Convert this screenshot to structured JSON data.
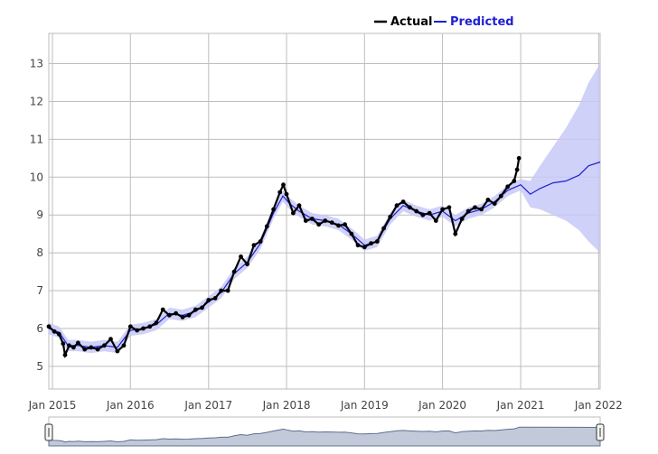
{
  "chart_data": {
    "type": "line",
    "title": "",
    "xlabel": "",
    "ylabel": "",
    "x_start": "2014-12-15",
    "x_end": "2022-01-08",
    "ylim": [
      4.4,
      13.8
    ],
    "grid": true,
    "legend_placement": "top-right",
    "x_ticks": [
      {
        "date": "2015-01-01",
        "label": "Jan 2015"
      },
      {
        "date": "2016-01-01",
        "label": "Jan 2016"
      },
      {
        "date": "2017-01-01",
        "label": "Jan 2017"
      },
      {
        "date": "2018-01-01",
        "label": "Jan 2018"
      },
      {
        "date": "2019-01-01",
        "label": "Jan 2019"
      },
      {
        "date": "2020-01-01",
        "label": "Jan 2020"
      },
      {
        "date": "2021-01-01",
        "label": "Jan 2021"
      },
      {
        "date": "2022-01-01",
        "label": "Jan 2022"
      }
    ],
    "y_ticks": [
      5,
      6,
      7,
      8,
      9,
      10,
      11,
      12,
      13
    ],
    "series": [
      {
        "name": "Actual",
        "color": "#000000",
        "mode": "markers",
        "points": [
          [
            "2014-12-15",
            6.05
          ],
          [
            "2015-01-10",
            5.92
          ],
          [
            "2015-02-01",
            5.85
          ],
          [
            "2015-02-20",
            5.6
          ],
          [
            "2015-03-01",
            5.3
          ],
          [
            "2015-03-20",
            5.55
          ],
          [
            "2015-04-10",
            5.5
          ],
          [
            "2015-05-01",
            5.62
          ],
          [
            "2015-06-01",
            5.45
          ],
          [
            "2015-07-01",
            5.5
          ],
          [
            "2015-08-01",
            5.45
          ],
          [
            "2015-09-01",
            5.55
          ],
          [
            "2015-10-01",
            5.72
          ],
          [
            "2015-11-01",
            5.4
          ],
          [
            "2015-12-01",
            5.55
          ],
          [
            "2016-01-01",
            6.05
          ],
          [
            "2016-02-01",
            5.95
          ],
          [
            "2016-03-01",
            6.0
          ],
          [
            "2016-04-01",
            6.05
          ],
          [
            "2016-05-01",
            6.15
          ],
          [
            "2016-06-01",
            6.5
          ],
          [
            "2016-07-01",
            6.35
          ],
          [
            "2016-08-01",
            6.4
          ],
          [
            "2016-09-01",
            6.3
          ],
          [
            "2016-10-01",
            6.35
          ],
          [
            "2016-11-01",
            6.5
          ],
          [
            "2016-12-01",
            6.55
          ],
          [
            "2017-01-01",
            6.75
          ],
          [
            "2017-02-01",
            6.8
          ],
          [
            "2017-03-01",
            7.0
          ],
          [
            "2017-04-01",
            7.0
          ],
          [
            "2017-05-01",
            7.5
          ],
          [
            "2017-06-01",
            7.9
          ],
          [
            "2017-07-01",
            7.7
          ],
          [
            "2017-08-01",
            8.2
          ],
          [
            "2017-09-01",
            8.3
          ],
          [
            "2017-10-01",
            8.7
          ],
          [
            "2017-11-01",
            9.15
          ],
          [
            "2017-12-01",
            9.6
          ],
          [
            "2017-12-17",
            9.8
          ],
          [
            "2018-01-01",
            9.55
          ],
          [
            "2018-02-01",
            9.05
          ],
          [
            "2018-03-01",
            9.25
          ],
          [
            "2018-04-01",
            8.85
          ],
          [
            "2018-05-01",
            8.9
          ],
          [
            "2018-06-01",
            8.75
          ],
          [
            "2018-07-01",
            8.85
          ],
          [
            "2018-08-01",
            8.8
          ],
          [
            "2018-09-01",
            8.72
          ],
          [
            "2018-10-01",
            8.75
          ],
          [
            "2018-11-01",
            8.5
          ],
          [
            "2018-12-01",
            8.2
          ],
          [
            "2019-01-01",
            8.15
          ],
          [
            "2019-02-01",
            8.25
          ],
          [
            "2019-03-01",
            8.3
          ],
          [
            "2019-04-01",
            8.65
          ],
          [
            "2019-05-01",
            8.95
          ],
          [
            "2019-06-01",
            9.25
          ],
          [
            "2019-07-01",
            9.35
          ],
          [
            "2019-08-01",
            9.2
          ],
          [
            "2019-09-01",
            9.1
          ],
          [
            "2019-10-01",
            9.0
          ],
          [
            "2019-11-01",
            9.05
          ],
          [
            "2019-12-01",
            8.85
          ],
          [
            "2020-01-01",
            9.15
          ],
          [
            "2020-02-01",
            9.2
          ],
          [
            "2020-03-01",
            8.5
          ],
          [
            "2020-04-01",
            8.9
          ],
          [
            "2020-05-01",
            9.1
          ],
          [
            "2020-06-01",
            9.2
          ],
          [
            "2020-07-01",
            9.15
          ],
          [
            "2020-08-01",
            9.4
          ],
          [
            "2020-09-01",
            9.3
          ],
          [
            "2020-10-01",
            9.5
          ],
          [
            "2020-11-01",
            9.75
          ],
          [
            "2020-12-01",
            9.9
          ],
          [
            "2020-12-15",
            10.2
          ],
          [
            "2020-12-24",
            10.5
          ]
        ]
      },
      {
        "name": "Predicted",
        "color": "#1f1fd1",
        "mode": "lines",
        "band_color": "#c7c9f7",
        "points": [
          [
            "2014-12-15",
            6.0,
            5.85,
            6.15
          ],
          [
            "2015-02-01",
            5.9,
            5.75,
            6.05
          ],
          [
            "2015-03-15",
            5.55,
            5.4,
            5.7
          ],
          [
            "2015-05-01",
            5.55,
            5.4,
            5.7
          ],
          [
            "2015-07-01",
            5.5,
            5.35,
            5.65
          ],
          [
            "2015-09-01",
            5.55,
            5.4,
            5.7
          ],
          [
            "2015-11-01",
            5.5,
            5.35,
            5.65
          ],
          [
            "2016-01-01",
            5.95,
            5.8,
            6.1
          ],
          [
            "2016-03-01",
            6.0,
            5.85,
            6.15
          ],
          [
            "2016-05-01",
            6.1,
            5.95,
            6.25
          ],
          [
            "2016-07-01",
            6.4,
            6.25,
            6.55
          ],
          [
            "2016-09-01",
            6.35,
            6.2,
            6.5
          ],
          [
            "2016-11-01",
            6.45,
            6.3,
            6.6
          ],
          [
            "2017-01-01",
            6.7,
            6.55,
            6.85
          ],
          [
            "2017-03-01",
            6.95,
            6.8,
            7.1
          ],
          [
            "2017-05-01",
            7.45,
            7.3,
            7.6
          ],
          [
            "2017-07-01",
            7.75,
            7.6,
            7.9
          ],
          [
            "2017-09-01",
            8.25,
            8.1,
            8.4
          ],
          [
            "2017-11-01",
            9.05,
            8.9,
            9.2
          ],
          [
            "2017-12-15",
            9.5,
            9.35,
            9.65
          ],
          [
            "2018-01-15",
            9.3,
            9.15,
            9.45
          ],
          [
            "2018-03-01",
            9.1,
            8.95,
            9.25
          ],
          [
            "2018-05-01",
            8.9,
            8.75,
            9.05
          ],
          [
            "2018-07-01",
            8.85,
            8.7,
            9.0
          ],
          [
            "2018-09-01",
            8.75,
            8.6,
            8.9
          ],
          [
            "2018-11-01",
            8.5,
            8.35,
            8.65
          ],
          [
            "2019-01-01",
            8.2,
            8.05,
            8.35
          ],
          [
            "2019-03-01",
            8.3,
            8.15,
            8.45
          ],
          [
            "2019-05-01",
            8.9,
            8.75,
            9.05
          ],
          [
            "2019-07-01",
            9.25,
            9.1,
            9.4
          ],
          [
            "2019-09-01",
            9.1,
            8.95,
            9.25
          ],
          [
            "2019-11-01",
            9.0,
            8.85,
            9.15
          ],
          [
            "2020-01-01",
            9.1,
            8.95,
            9.25
          ],
          [
            "2020-03-01",
            8.85,
            8.7,
            9.0
          ],
          [
            "2020-05-01",
            9.05,
            8.9,
            9.2
          ],
          [
            "2020-07-01",
            9.15,
            9.0,
            9.3
          ],
          [
            "2020-09-01",
            9.35,
            9.2,
            9.5
          ],
          [
            "2020-11-01",
            9.65,
            9.5,
            9.8
          ],
          [
            "2021-01-01",
            9.8,
            9.65,
            9.95
          ],
          [
            "2021-02-15",
            9.55,
            9.2,
            9.9
          ],
          [
            "2021-04-01",
            9.7,
            9.15,
            10.3
          ],
          [
            "2021-06-01",
            9.85,
            9.0,
            10.8
          ],
          [
            "2021-08-01",
            9.9,
            8.85,
            11.3
          ],
          [
            "2021-10-01",
            10.05,
            8.6,
            11.9
          ],
          [
            "2021-11-15",
            10.3,
            8.3,
            12.5
          ],
          [
            "2022-01-08",
            10.4,
            8.0,
            13.0
          ]
        ]
      }
    ]
  }
}
